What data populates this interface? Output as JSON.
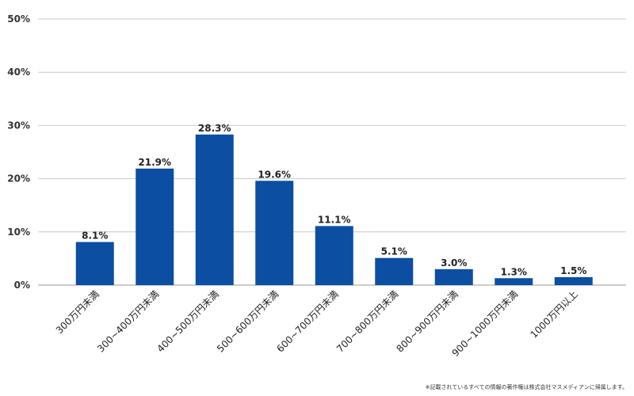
{
  "chart_data": {
    "type": "bar",
    "title": "",
    "xlabel": "",
    "ylabel": "",
    "categories": [
      "300万円未満",
      "300~400万円未満",
      "400~500万円未満",
      "500~600万円未満",
      "600~700万円未満",
      "700~800万円未満",
      "800~900万円未満",
      "900~1000万円未満",
      "1000万円以上"
    ],
    "values": [
      8.1,
      21.9,
      28.3,
      19.6,
      11.1,
      5.1,
      3.0,
      1.3,
      1.5
    ],
    "data_labels": [
      "8.1%",
      "21.9%",
      "28.3%",
      "19.6%",
      "11.1%",
      "5.1%",
      "3.0%",
      "1.3%",
      "1.5%"
    ],
    "ylim": [
      0,
      50
    ],
    "yticks": [
      0,
      10,
      20,
      30,
      40,
      50
    ],
    "ytick_labels": [
      "0%",
      "10%",
      "20%",
      "30%",
      "40%",
      "50%"
    ],
    "grid": true,
    "legend": "none",
    "bar_color": "#0b4ea2"
  },
  "footnote": "※記載されているすべての情報の著作権は株式会社マスメディアンに帰属します。"
}
